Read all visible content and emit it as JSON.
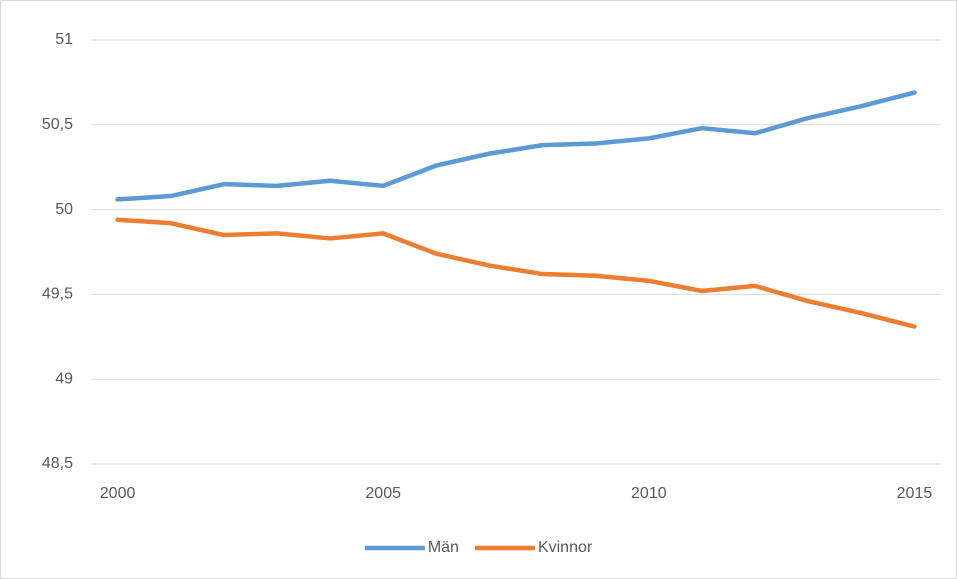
{
  "chart_data": {
    "type": "line",
    "x": [
      2000,
      2001,
      2002,
      2003,
      2004,
      2005,
      2006,
      2007,
      2008,
      2009,
      2010,
      2011,
      2012,
      2013,
      2014,
      2015
    ],
    "series": [
      {
        "name": "Män",
        "color": "#5b9bd5",
        "values": [
          50.06,
          50.08,
          50.15,
          50.14,
          50.17,
          50.14,
          50.26,
          50.33,
          50.38,
          50.39,
          50.42,
          50.48,
          50.45,
          50.54,
          50.61,
          50.69
        ]
      },
      {
        "name": "Kvinnor",
        "color": "#ed7d31",
        "values": [
          49.94,
          49.92,
          49.85,
          49.86,
          49.83,
          49.86,
          49.74,
          49.67,
          49.62,
          49.61,
          49.58,
          49.52,
          49.55,
          49.46,
          49.39,
          49.31
        ]
      }
    ],
    "xlim": [
      1999.5,
      2015.5
    ],
    "xticks": [
      2000,
      2005,
      2010,
      2015
    ],
    "ylim": [
      48.5,
      51
    ],
    "yticks": [
      {
        "value": 48.5,
        "label": "48,5"
      },
      49,
      {
        "value": 49.5,
        "label": "49,5"
      },
      50,
      {
        "value": 50.5,
        "label": "50,5"
      },
      51
    ],
    "grid": true,
    "legend": "bottom"
  }
}
